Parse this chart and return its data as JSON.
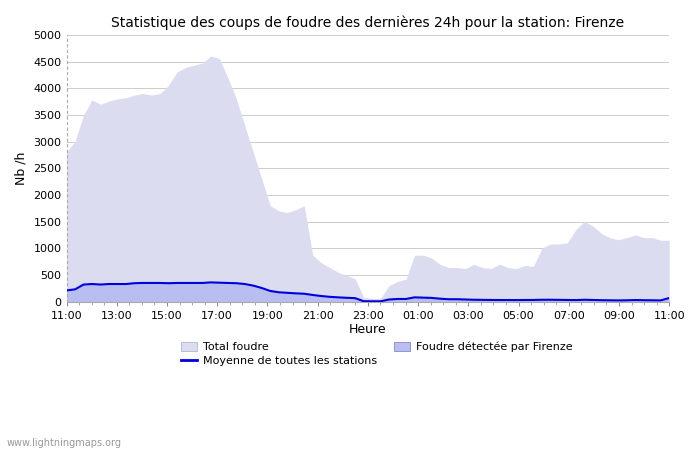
{
  "title": "Statistique des coups de foudre des dernières 24h pour la station: Firenze",
  "xlabel": "Heure",
  "ylabel": "Nb /h",
  "ylim": [
    0,
    5000
  ],
  "yticks": [
    0,
    500,
    1000,
    1500,
    2000,
    2500,
    3000,
    3500,
    4000,
    4500,
    5000
  ],
  "x_labels": [
    "11:00",
    "13:00",
    "15:00",
    "17:00",
    "19:00",
    "21:00",
    "23:00",
    "01:00",
    "03:00",
    "05:00",
    "07:00",
    "09:00",
    "11:00"
  ],
  "background_color": "#ffffff",
  "plot_bg_color": "#ffffff",
  "grid_color": "#cccccc",
  "total_fill_color": "#dcdcf0",
  "firenze_fill_color": "#b8bef0",
  "moyenne_color": "#0000dd",
  "watermark": "www.lightningmaps.org",
  "total_foudre": [
    2800,
    3000,
    3500,
    3780,
    3700,
    3760,
    3800,
    3820,
    3870,
    3900,
    3870,
    3900,
    4050,
    4300,
    4390,
    4430,
    4470,
    4600,
    4560,
    4200,
    3800,
    3300,
    2800,
    2300,
    1800,
    1700,
    1670,
    1720,
    1800,
    870,
    730,
    640,
    550,
    490,
    430,
    80,
    60,
    60,
    300,
    380,
    420,
    870,
    870,
    820,
    700,
    640,
    640,
    620,
    700,
    640,
    620,
    700,
    640,
    620,
    680,
    660,
    1000,
    1080,
    1080,
    1100,
    1350,
    1500,
    1420,
    1280,
    1200,
    1160,
    1200,
    1250,
    1200,
    1200,
    1150,
    1150
  ],
  "firenze_foudre": [
    220,
    240,
    330,
    340,
    330,
    340,
    340,
    340,
    355,
    360,
    360,
    360,
    355,
    360,
    360,
    360,
    360,
    370,
    365,
    360,
    355,
    340,
    310,
    260,
    210,
    185,
    170,
    160,
    155,
    130,
    110,
    95,
    85,
    78,
    72,
    10,
    8,
    8,
    45,
    55,
    55,
    85,
    80,
    75,
    60,
    50,
    50,
    45,
    40,
    38,
    36,
    35,
    35,
    34,
    36,
    36,
    40,
    40,
    38,
    36,
    34,
    40,
    36,
    32,
    30,
    28,
    30,
    35,
    32,
    30,
    28,
    72
  ],
  "moyenne_foudre": [
    210,
    230,
    320,
    330,
    320,
    330,
    330,
    330,
    345,
    350,
    350,
    350,
    345,
    350,
    350,
    350,
    350,
    360,
    355,
    350,
    345,
    330,
    300,
    255,
    200,
    175,
    165,
    155,
    148,
    125,
    105,
    90,
    80,
    72,
    65,
    8,
    6,
    6,
    40,
    50,
    50,
    80,
    75,
    70,
    55,
    45,
    45,
    40,
    35,
    33,
    31,
    30,
    30,
    29,
    31,
    31,
    35,
    35,
    33,
    31,
    29,
    35,
    31,
    27,
    25,
    23,
    25,
    30,
    27,
    25,
    23,
    68
  ],
  "title_fontsize": 10,
  "label_fontsize": 9,
  "tick_fontsize": 8,
  "legend_fontsize": 8
}
